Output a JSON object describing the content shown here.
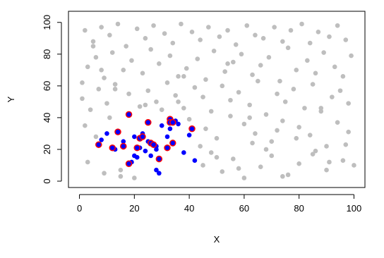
{
  "chart_data": {
    "type": "scatter",
    "xlabel": "X",
    "ylabel": "Y",
    "xlim": [
      -4,
      104
    ],
    "ylim": [
      -4,
      107
    ],
    "xticks": [
      0,
      20,
      40,
      60,
      80,
      100
    ],
    "yticks": [
      0,
      20,
      40,
      60,
      80,
      100
    ],
    "series": [
      {
        "color": "#bebebe",
        "outline": null,
        "x": [
          2,
          5,
          8,
          11,
          14,
          17,
          21,
          24,
          27,
          31,
          34,
          37,
          41,
          44,
          47,
          51,
          54,
          57,
          61,
          64,
          67,
          71,
          74,
          77,
          81,
          84,
          87,
          91,
          94,
          97,
          3,
          6,
          9,
          12,
          16,
          19,
          23,
          26,
          29,
          33,
          36,
          39,
          43,
          46,
          49,
          53,
          56,
          59,
          63,
          66,
          69,
          73,
          76,
          79,
          83,
          86,
          89,
          93,
          96,
          99,
          1,
          4,
          7,
          10,
          13,
          18,
          22,
          25,
          28,
          32,
          35,
          38,
          42,
          45,
          48,
          52,
          55,
          58,
          62,
          65,
          68,
          72,
          75,
          78,
          82,
          85,
          88,
          92,
          95,
          98,
          2,
          6,
          11,
          15,
          20,
          24,
          30,
          36,
          40,
          46,
          50,
          55,
          60,
          64,
          70,
          74,
          80,
          84,
          90,
          94,
          98,
          3,
          9,
          15,
          45,
          48,
          52,
          56,
          60,
          66,
          70,
          76,
          80,
          86,
          90,
          96,
          1,
          8,
          44,
          50,
          58,
          63,
          68,
          74,
          79,
          85,
          91,
          97,
          5,
          13,
          38,
          54,
          62,
          72,
          88,
          100
        ],
        "y": [
          95,
          88,
          97,
          92,
          99,
          85,
          96,
          90,
          98,
          93,
          87,
          99,
          94,
          89,
          97,
          91,
          95,
          86,
          98,
          92,
          90,
          97,
          88,
          95,
          99,
          87,
          94,
          91,
          98,
          89,
          72,
          78,
          65,
          81,
          70,
          76,
          68,
          83,
          74,
          79,
          66,
          71,
          77,
          64,
          82,
          69,
          75,
          80,
          67,
          73,
          78,
          63,
          84,
          70,
          76,
          68,
          81,
          72,
          66,
          79,
          52,
          45,
          58,
          49,
          61,
          55,
          47,
          57,
          50,
          62,
          54,
          46,
          59,
          53,
          44,
          60,
          51,
          56,
          48,
          63,
          42,
          55,
          50,
          58,
          46,
          61,
          44,
          53,
          57,
          49,
          35,
          28,
          40,
          7,
          2,
          48,
          45,
          50,
          39,
          33,
          27,
          41,
          36,
          30,
          25,
          38,
          34,
          29,
          22,
          37,
          31,
          12,
          5,
          3,
          10,
          18,
          6,
          14,
          2,
          9,
          16,
          4,
          11,
          19,
          7,
          13,
          62,
          70,
          22,
          15,
          8,
          24,
          20,
          3,
          27,
          17,
          12,
          23,
          85,
          58,
          66,
          74,
          40,
          32,
          46,
          10
        ]
      },
      {
        "color": "#0000ff",
        "outline": null,
        "x": [
          7,
          8,
          10,
          12,
          13,
          14,
          16,
          16,
          18,
          18,
          19,
          20,
          20,
          21,
          22,
          22,
          23,
          23,
          24,
          25,
          25,
          26,
          26,
          27,
          28,
          28,
          28,
          29,
          29,
          30,
          32,
          32,
          33,
          33,
          34,
          34,
          35,
          36,
          38,
          40,
          41,
          42
        ],
        "y": [
          23,
          26,
          30,
          21,
          20,
          31,
          22,
          25,
          42,
          11,
          12,
          28,
          16,
          15,
          27,
          21,
          30,
          28,
          19,
          25,
          37,
          24,
          16,
          23,
          22,
          20,
          7,
          5,
          14,
          35,
          21,
          28,
          39,
          33,
          37,
          24,
          38,
          36,
          18,
          29,
          33,
          13
        ]
      },
      {
        "color": "#0000ff",
        "outline": "#ff0000",
        "x": [
          7,
          12,
          14,
          16,
          18,
          18,
          21,
          22,
          23,
          25,
          26,
          27,
          29,
          32,
          33,
          33,
          34,
          34,
          41
        ],
        "y": [
          23,
          21,
          31,
          22,
          42,
          11,
          21,
          27,
          28,
          37,
          24,
          23,
          14,
          21,
          39,
          37,
          37,
          24,
          33
        ]
      }
    ]
  }
}
